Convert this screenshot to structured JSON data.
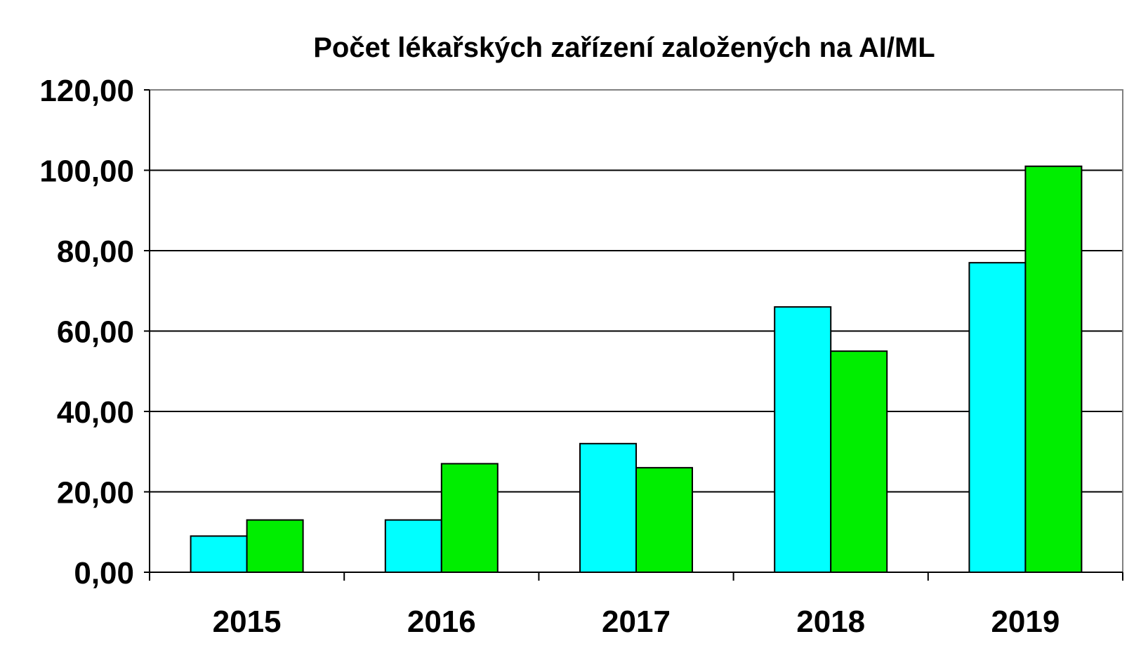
{
  "chart_data": {
    "type": "bar",
    "title": "Počet lékařských zařízení založených na AI/ML",
    "categories": [
      "2015",
      "2016",
      "2017",
      "2018",
      "2019"
    ],
    "series": [
      {
        "values": [
          9,
          13,
          32,
          66,
          77
        ],
        "color": "#00ffff"
      },
      {
        "values": [
          13,
          27,
          26,
          55,
          101
        ],
        "color": "#00ee00"
      }
    ],
    "yticks": [
      "0,00",
      "20,00",
      "40,00",
      "60,00",
      "80,00",
      "100,00",
      "120,00"
    ],
    "ylim": [
      0,
      120
    ],
    "grid": true,
    "legend": false
  }
}
